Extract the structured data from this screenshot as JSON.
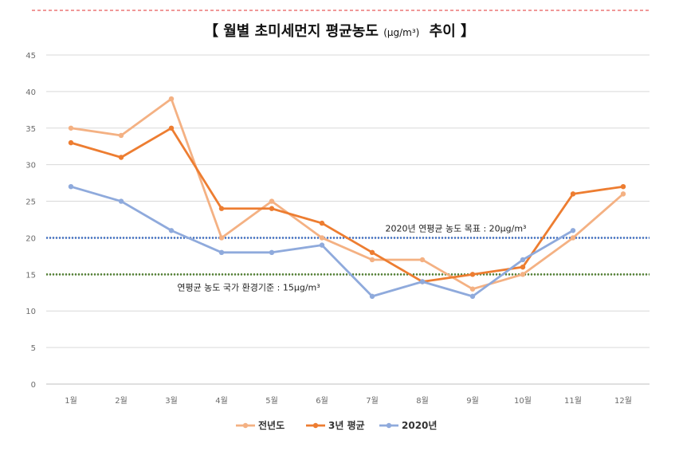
{
  "chart_data": {
    "type": "line",
    "title_main": "【 월별 초미세먼지 평균농도",
    "title_unit": "(μg/m³)",
    "title_tail": "추이 】",
    "categories": [
      "1월",
      "2월",
      "3월",
      "4월",
      "5월",
      "6월",
      "7월",
      "8월",
      "9월",
      "10월",
      "11월",
      "12월"
    ],
    "ylim": [
      0,
      45
    ],
    "yticks": [
      0,
      5,
      10,
      15,
      20,
      25,
      30,
      35,
      40,
      45
    ],
    "grid": true,
    "legend_position": "bottom",
    "series": [
      {
        "name": "전년도",
        "color": "#f4b183",
        "values": [
          35,
          34,
          39,
          20,
          25,
          20,
          17,
          17,
          13,
          15,
          20,
          26
        ]
      },
      {
        "name": "3년 평균",
        "color": "#ed7d31",
        "values": [
          33,
          31,
          35,
          24,
          24,
          22,
          18,
          14,
          15,
          16,
          26,
          27
        ]
      },
      {
        "name": "2020년",
        "color": "#8faadc",
        "values": [
          27,
          25,
          21,
          18,
          18,
          19,
          12,
          14,
          12,
          17,
          21,
          null
        ]
      }
    ],
    "reference_lines": [
      {
        "value": 20,
        "color": "#4472c4",
        "label": "2020년 연평균 농도 목표 : 20μg/m³"
      },
      {
        "value": 15,
        "color": "#548235",
        "label": "연평균 농도 국가 환경기준 : 15μg/m³"
      }
    ]
  }
}
